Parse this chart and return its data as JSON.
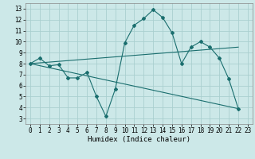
{
  "title": "",
  "xlabel": "Humidex (Indice chaleur)",
  "bg_color": "#cce8e8",
  "grid_color": "#aacfcf",
  "line_color": "#1a6e6e",
  "xlim": [
    -0.5,
    23.5
  ],
  "ylim": [
    2.5,
    13.5
  ],
  "xticks": [
    0,
    1,
    2,
    3,
    4,
    5,
    6,
    7,
    8,
    9,
    10,
    11,
    12,
    13,
    14,
    15,
    16,
    17,
    18,
    19,
    20,
    21,
    22,
    23
  ],
  "yticks": [
    3,
    4,
    5,
    6,
    7,
    8,
    9,
    10,
    11,
    12,
    13
  ],
  "series0_x": [
    0,
    1,
    2,
    3,
    4,
    5,
    6,
    7,
    8,
    9,
    10,
    11,
    12,
    13,
    14,
    15,
    16,
    17,
    18,
    19,
    20,
    21,
    22
  ],
  "series0_y": [
    8.0,
    8.5,
    7.8,
    7.9,
    6.7,
    6.7,
    7.2,
    5.0,
    3.2,
    5.7,
    9.9,
    11.5,
    12.1,
    12.9,
    12.2,
    10.8,
    8.0,
    9.5,
    10.0,
    9.5,
    8.5,
    6.6,
    3.9
  ],
  "series1_x": [
    0,
    22
  ],
  "series1_y": [
    8.0,
    3.9
  ],
  "series2_x": [
    0,
    22
  ],
  "series2_y": [
    8.0,
    9.5
  ]
}
